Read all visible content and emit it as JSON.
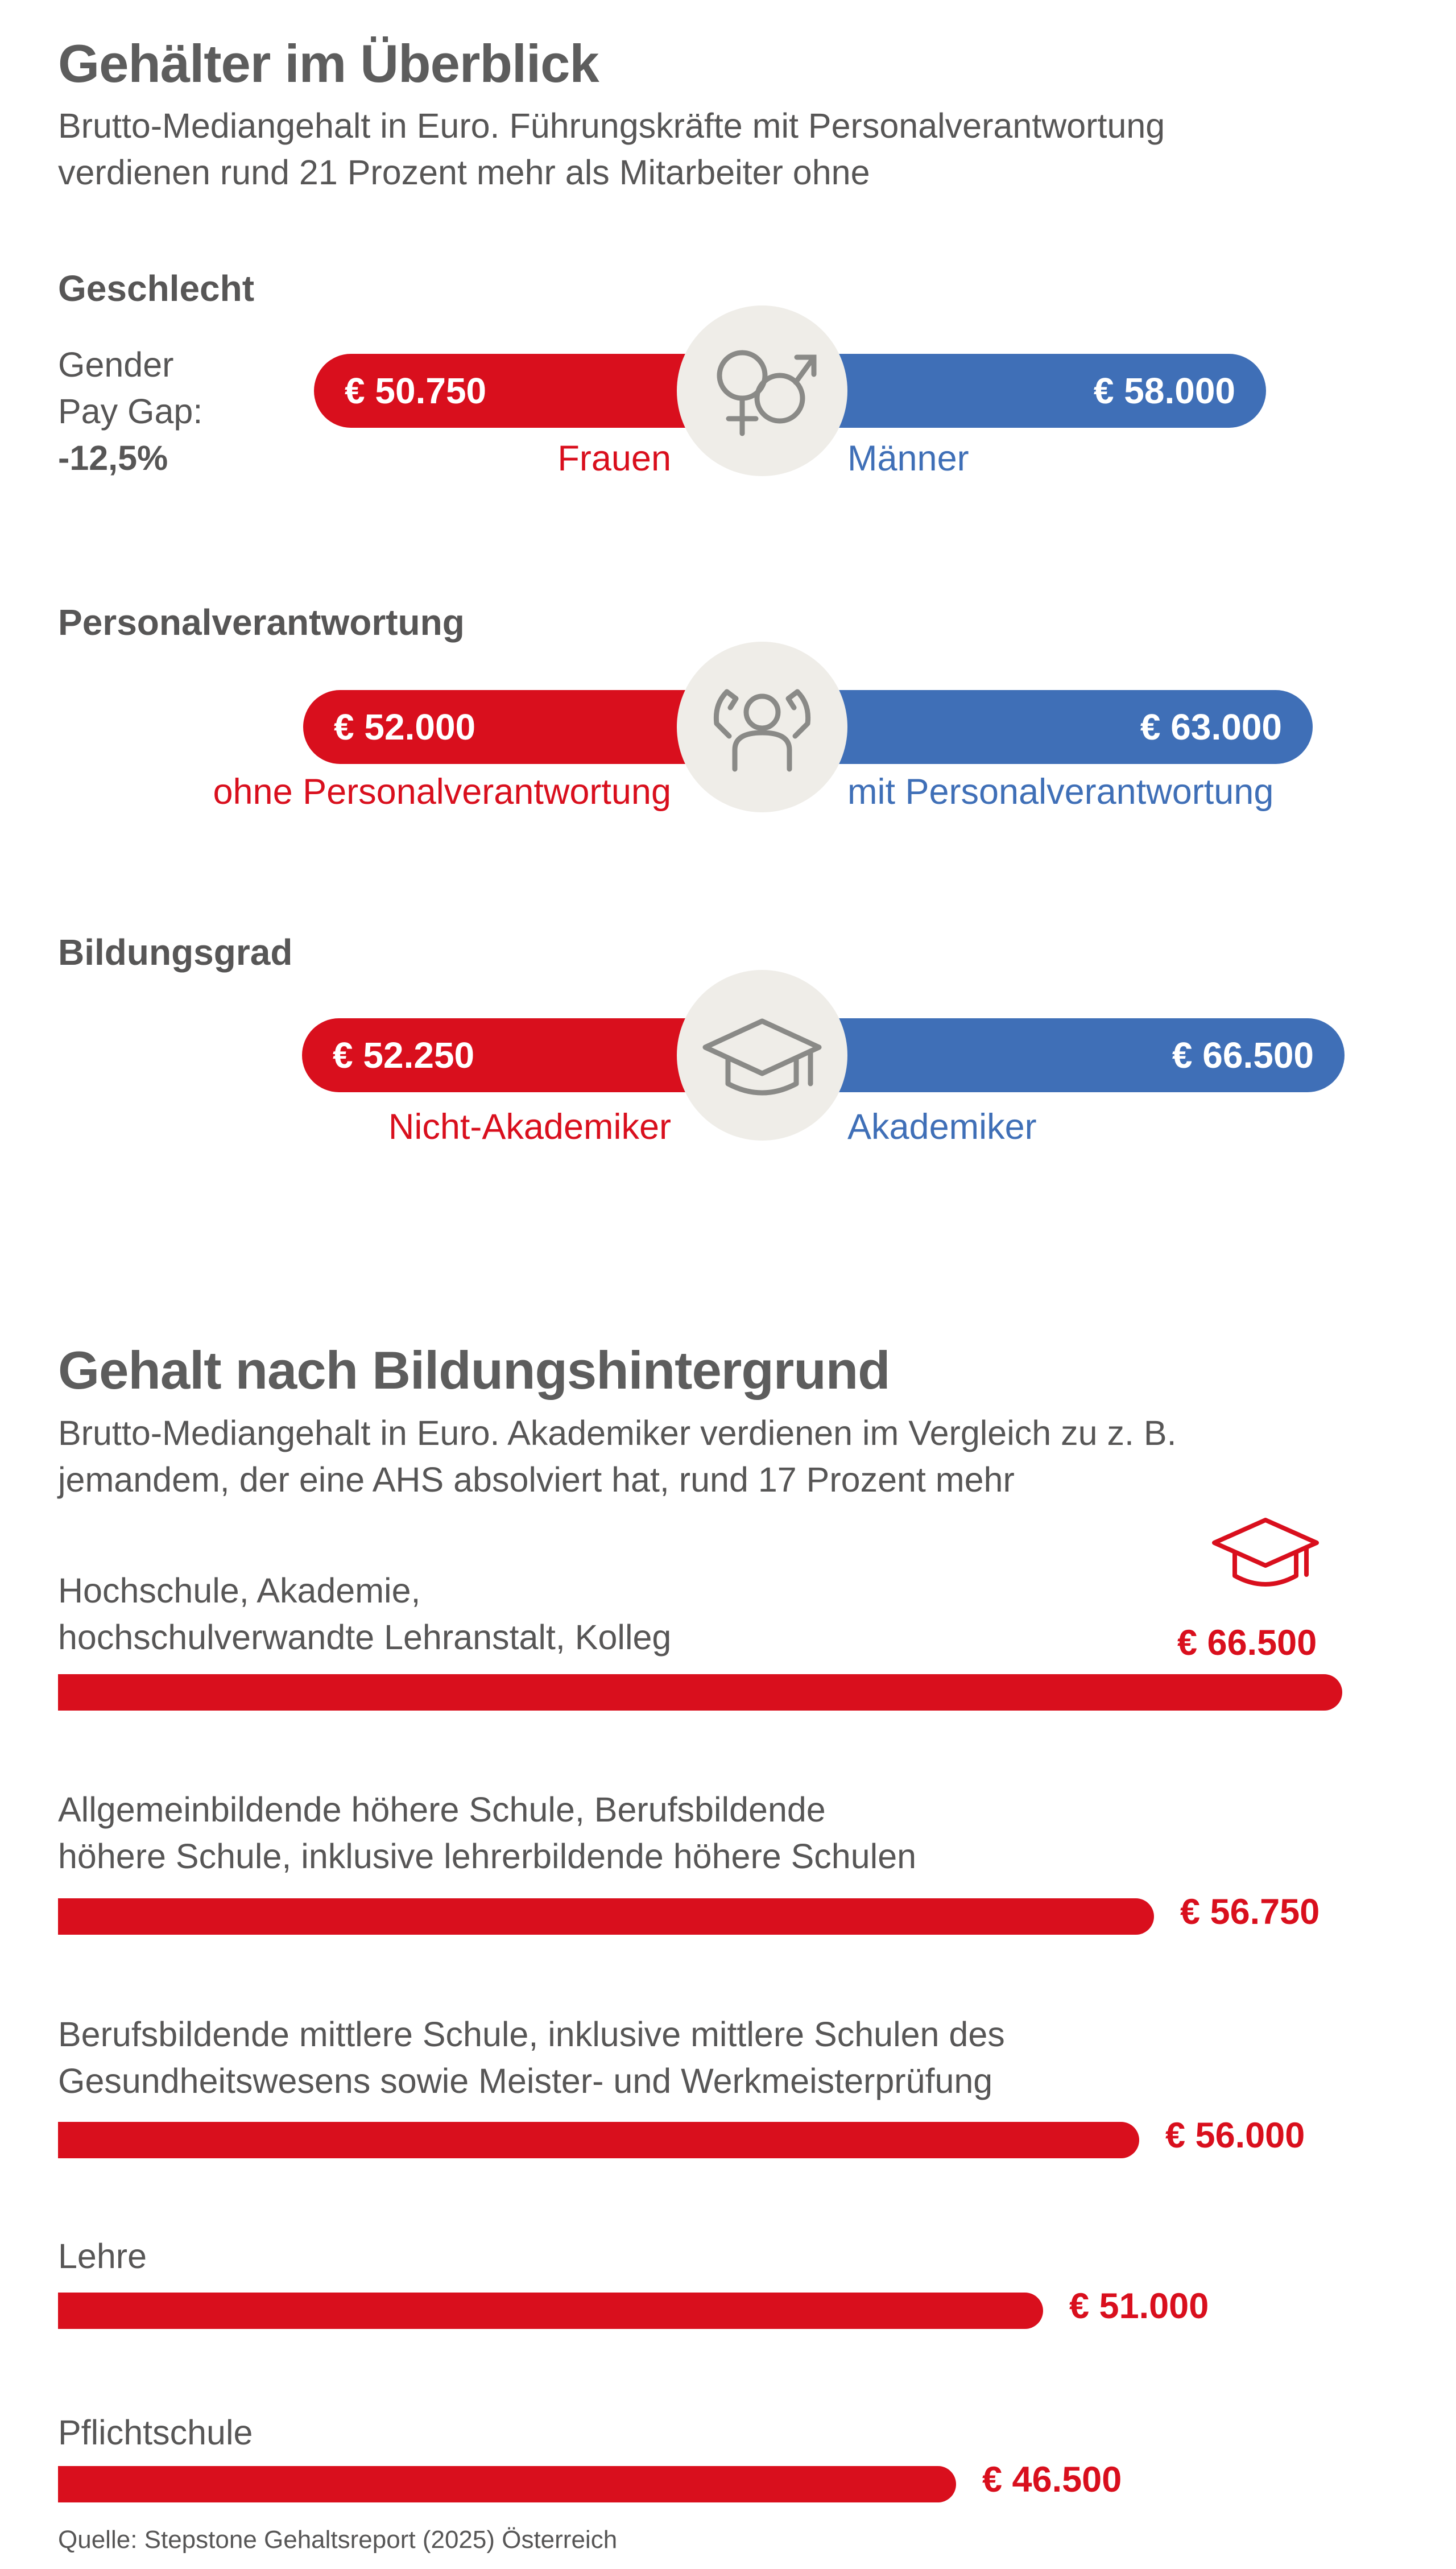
{
  "overview": {
    "title": "Gehälter im Überblick",
    "subtitle_line1": "Brutto-Mediangehalt in Euro. Führungskräfte mit Personalverantwortung",
    "subtitle_line2": "verdienen rund 21 Prozent mehr als Mitarbeiter ohne"
  },
  "gender": {
    "label": "Geschlecht",
    "gap_line1": "Gender",
    "gap_line2": "Pay Gap:",
    "gap_value": "-12,5%",
    "left_value": "€ 50.750",
    "right_value": "€ 58.000",
    "left_caption": "Frauen",
    "right_caption": "Männer",
    "icon": "gender-symbols-icon"
  },
  "responsibility": {
    "label": "Personalverantwortung",
    "left_value": "€ 52.000",
    "right_value": "€ 63.000",
    "left_caption": "ohne Personalverantwortung",
    "right_caption": "mit Personalverantwortung",
    "icon": "caring-hands-person-icon"
  },
  "education_level": {
    "label": "Bildungsgrad",
    "left_value": "€ 52.250",
    "right_value": "€ 66.500",
    "left_caption": "Nicht-Akademiker",
    "right_caption": "Akademiker",
    "icon": "graduation-cap-icon"
  },
  "background": {
    "title": "Gehalt nach Bildungshintergrund",
    "subtitle_line1": "Brutto-Mediangehalt in Euro. Akademiker verdienen im Vergleich zu z. B.",
    "subtitle_line2": "jemandem, der eine AHS absolviert hat, rund 17 Prozent mehr"
  },
  "source": "Quelle: Stepstone Gehaltsreport (2025) Österreich",
  "colors": {
    "red": "#d90f1d",
    "blue": "#3f6fb7",
    "text": "#575656",
    "badge": "#efede8"
  },
  "chart_data": [
    {
      "type": "bar",
      "orientation": "diverging",
      "categories": [
        "Geschlecht",
        "Personalverantwortung",
        "Bildungsgrad"
      ],
      "series": [
        {
          "name": "left",
          "labels": [
            "Frauen",
            "ohne Personalverantwortung",
            "Nicht-Akademiker"
          ],
          "values": [
            50750,
            52000,
            52250
          ]
        },
        {
          "name": "right",
          "labels": [
            "Männer",
            "mit Personalverantwortung",
            "Akademiker"
          ],
          "values": [
            58000,
            63000,
            66500
          ]
        }
      ],
      "unit": "€"
    },
    {
      "type": "bar",
      "orientation": "horizontal",
      "categories": [
        "Hochschule, Akademie, hochschulverwandte Lehranstalt, Kolleg",
        "Allgemeinbildende höhere Schule, Berufsbildende höhere Schule, inklusive lehrerbildende höhere Schulen",
        "Berufsbildende mittlere Schule, inklusive mittlere Schulen des Gesundheitswesens sowie Meister- und Werkmeisterprüfung",
        "Lehre",
        "Pflichtschule"
      ],
      "label_lines": [
        [
          "Hochschule, Akademie,",
          "hochschulverwandte Lehranstalt, Kolleg"
        ],
        [
          "Allgemeinbildende höhere Schule, Berufsbildende",
          "höhere Schule, inklusive lehrerbildende höhere Schulen"
        ],
        [
          "Berufsbildende mittlere Schule, inklusive mittlere Schulen des",
          "Gesundheitswesens sowie Meister- und Werkmeisterprüfung"
        ],
        [
          "Lehre"
        ],
        [
          "Pflichtschule"
        ]
      ],
      "values": [
        66500,
        56750,
        56000,
        51000,
        46500
      ],
      "value_labels": [
        "€ 66.500",
        "€ 56.750",
        "€ 56.000",
        "€ 51.000",
        "€ 46.500"
      ],
      "unit": "€",
      "xlim": [
        0,
        66500
      ]
    }
  ]
}
